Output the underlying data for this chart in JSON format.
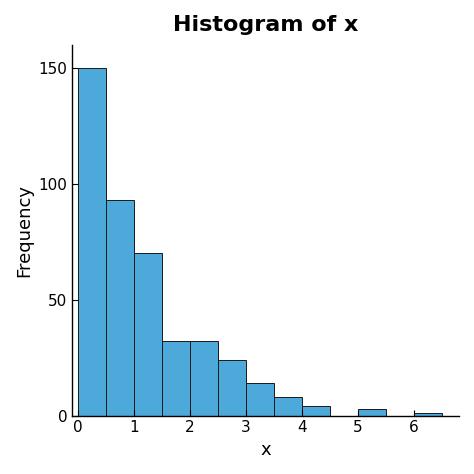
{
  "title": "Histogram of x",
  "xlabel": "x",
  "ylabel": "Frequency",
  "bar_color": "#4DA9D9",
  "edge_color": "#1A1A1A",
  "bin_edges": [
    0.0,
    0.5,
    1.0,
    1.5,
    2.0,
    2.5,
    3.0,
    3.5,
    4.0,
    4.5,
    5.0,
    5.5,
    6.0,
    6.5
  ],
  "frequencies": [
    150,
    93,
    70,
    32,
    32,
    24,
    14,
    8,
    4,
    0,
    3,
    0,
    1
  ],
  "xlim": [
    -0.1,
    6.8
  ],
  "ylim": [
    0,
    160
  ],
  "yticks": [
    0,
    50,
    100,
    150
  ],
  "xticks": [
    0,
    1,
    2,
    3,
    4,
    5,
    6
  ],
  "title_fontsize": 16,
  "label_fontsize": 13,
  "tick_fontsize": 11,
  "background_color": "#FFFFFF"
}
